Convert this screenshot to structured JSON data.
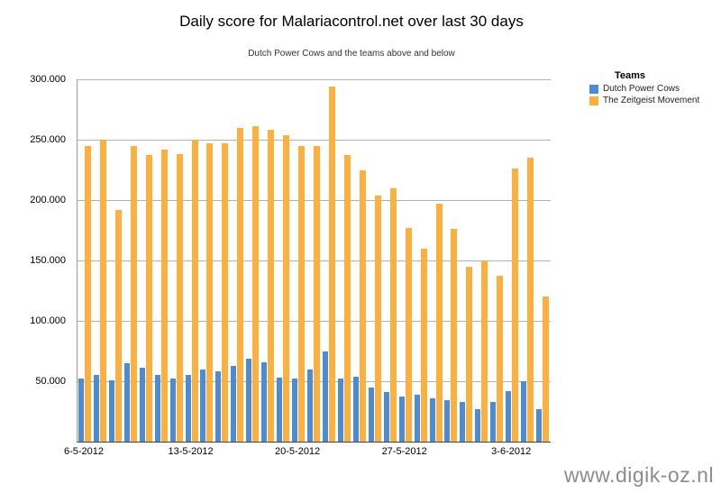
{
  "title": "Daily score for Malariacontrol.net over last 30 days",
  "subtitle": "Dutch Power Cows and the teams above and below",
  "watermark": "www.digik-oz.nl",
  "legend": {
    "title": "Teams",
    "items": [
      {
        "label": "Dutch Power Cows",
        "color": "#4d8bd3"
      },
      {
        "label": "The Zeitgeist Movement",
        "color": "#fbb03f"
      }
    ]
  },
  "chart_data": {
    "type": "bar",
    "title": "Daily score for Malariacontrol.net over last 30 days",
    "subtitle": "Dutch Power Cows and the teams above and below",
    "grid": true,
    "legend_position": "top-right",
    "ylim": [
      0,
      300000
    ],
    "y_ticks": [
      {
        "value": 50000,
        "label": "50.000"
      },
      {
        "value": 100000,
        "label": "100.000"
      },
      {
        "value": 150000,
        "label": "150.000"
      },
      {
        "value": 200000,
        "label": "200.000"
      },
      {
        "value": 250000,
        "label": "250.000"
      },
      {
        "value": 300000,
        "label": "300.000"
      }
    ],
    "x": [
      "6-5-2012",
      "7-5-2012",
      "8-5-2012",
      "9-5-2012",
      "10-5-2012",
      "11-5-2012",
      "12-5-2012",
      "13-5-2012",
      "14-5-2012",
      "15-5-2012",
      "16-5-2012",
      "17-5-2012",
      "18-5-2012",
      "19-5-2012",
      "20-5-2012",
      "21-5-2012",
      "22-5-2012",
      "23-5-2012",
      "24-5-2012",
      "25-5-2012",
      "26-5-2012",
      "27-5-2012",
      "28-5-2012",
      "29-5-2012",
      "30-5-2012",
      "31-5-2012",
      "1-6-2012",
      "2-6-2012",
      "3-6-2012",
      "4-6-2012",
      "5-6-2012"
    ],
    "x_tick_labels": [
      {
        "index": 0,
        "label": "6-5-2012"
      },
      {
        "index": 7,
        "label": "13-5-2012"
      },
      {
        "index": 14,
        "label": "20-5-2012"
      },
      {
        "index": 21,
        "label": "27-5-2012"
      },
      {
        "index": 28,
        "label": "3-6-2012"
      }
    ],
    "series": [
      {
        "name": "Dutch Power Cows",
        "color": "#4d8bd3",
        "values": [
          52000,
          55000,
          51000,
          65000,
          61000,
          55000,
          52000,
          55000,
          60000,
          58000,
          63000,
          69000,
          66000,
          53000,
          52000,
          60000,
          75000,
          52000,
          54000,
          45000,
          41000,
          37000,
          39000,
          36000,
          34000,
          33000,
          27000,
          33000,
          42000,
          50000,
          27000
        ]
      },
      {
        "name": "The Zeitgeist Movement",
        "color": "#fbb03f",
        "values": [
          245000,
          250000,
          192000,
          245000,
          237000,
          242000,
          238000,
          250000,
          247000,
          247000,
          260000,
          261000,
          258000,
          254000,
          245000,
          245000,
          294000,
          237000,
          225000,
          204000,
          210000,
          177000,
          160000,
          197000,
          176000,
          145000,
          150000,
          137000,
          226000,
          235000,
          120000
        ]
      }
    ]
  }
}
